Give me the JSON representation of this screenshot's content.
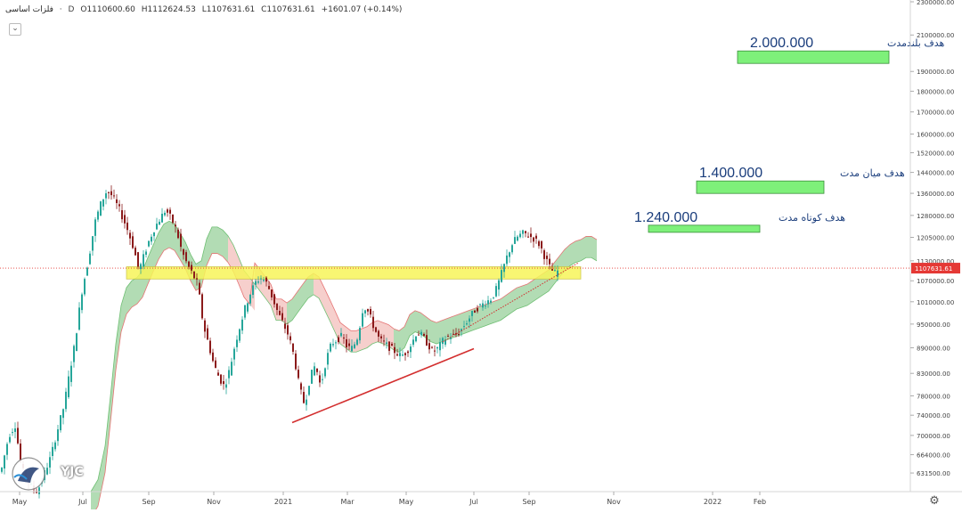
{
  "legend": {
    "symbol": "فلزات اساسی",
    "interval": "D",
    "open": "O1110600.60",
    "high": "H1112624.53",
    "low": "L1107631.61",
    "close": "C1107631.61",
    "change": "+1601.07 (+0.14%)"
  },
  "logo_text": "YJC",
  "colors": {
    "bull": "#26a69a",
    "bear": "#8b1a1a",
    "cloud_bull": "#a5d6a7",
    "cloud_bear": "#f4c7c3",
    "target_box": "#7ef07a",
    "support_zone": "#f7f55a",
    "trendline": "#d32f2f",
    "price_tag": "#e53935",
    "annotation_text": "#1a3d7c"
  },
  "chart_data": {
    "type": "candlestick",
    "y_scale": "log",
    "x_tick_labels": [
      "May",
      "Jul",
      "Sep",
      "Nov",
      "2021",
      "Mar",
      "May",
      "Jul",
      "Sep",
      "Nov",
      "2022",
      "Feb"
    ],
    "y_tick_labels": [
      "2300000.00",
      "2100000.00",
      "1900000.00",
      "1800000.00",
      "1700000.00",
      "1600000.00",
      "1520000.00",
      "1440000.00",
      "1360000.00",
      "1280000.00",
      "1205000.00",
      "1130000.00",
      "1070000.00",
      "1010000.00",
      "950000.00",
      "890000.00",
      "830000.00",
      "780000.00",
      "740000.00",
      "700000.00",
      "664000.00",
      "631500.00"
    ],
    "y_ticks": [
      2300000,
      2100000,
      1900000,
      1800000,
      1700000,
      1600000,
      1520000,
      1440000,
      1360000,
      1280000,
      1205000,
      1130000,
      1070000,
      1010000,
      950000,
      890000,
      830000,
      780000,
      740000,
      700000,
      664000,
      631500
    ],
    "last_price": 1107631.61,
    "last_price_label": "1107631.61",
    "targets": [
      {
        "label": "هدف بلندمدت",
        "value_text": "2.000.000",
        "value": 2000000
      },
      {
        "label": "هدف میان مدت",
        "value_text": "1.400.000",
        "value": 1400000
      },
      {
        "label": "هدف کوتاه مدت",
        "value_text": "1.240.000",
        "value": 1240000
      }
    ],
    "support_zone": {
      "low": 1075000,
      "high": 1112000
    },
    "trendline": {
      "from": 725000,
      "to": 1125000
    },
    "price_path": [
      [
        0,
        640000
      ],
      [
        8,
        700000
      ],
      [
        15,
        720000
      ],
      [
        22,
        640000
      ],
      [
        32,
        610000
      ],
      [
        40,
        600000
      ],
      [
        55,
        660000
      ],
      [
        70,
        760000
      ],
      [
        82,
        900000
      ],
      [
        90,
        1040000
      ],
      [
        97,
        1130000
      ],
      [
        105,
        1260000
      ],
      [
        112,
        1330000
      ],
      [
        118,
        1370000
      ],
      [
        124,
        1350000
      ],
      [
        132,
        1300000
      ],
      [
        140,
        1240000
      ],
      [
        148,
        1170000
      ],
      [
        154,
        1100000
      ],
      [
        160,
        1150000
      ],
      [
        166,
        1200000
      ],
      [
        172,
        1240000
      ],
      [
        178,
        1270000
      ],
      [
        184,
        1300000
      ],
      [
        190,
        1270000
      ],
      [
        196,
        1230000
      ],
      [
        202,
        1160000
      ],
      [
        208,
        1120000
      ],
      [
        214,
        1090000
      ],
      [
        220,
        1060000
      ],
      [
        226,
        950000
      ],
      [
        232,
        900000
      ],
      [
        238,
        850000
      ],
      [
        244,
        820000
      ],
      [
        250,
        800000
      ],
      [
        256,
        840000
      ],
      [
        262,
        900000
      ],
      [
        268,
        950000
      ],
      [
        274,
        1000000
      ],
      [
        280,
        1040000
      ],
      [
        286,
        1070000
      ],
      [
        292,
        1080000
      ],
      [
        298,
        1060000
      ],
      [
        304,
        1020000
      ],
      [
        310,
        980000
      ],
      [
        316,
        950000
      ],
      [
        322,
        920000
      ],
      [
        328,
        870000
      ],
      [
        334,
        800000
      ],
      [
        340,
        760000
      ],
      [
        346,
        820000
      ],
      [
        352,
        850000
      ],
      [
        358,
        800000
      ],
      [
        364,
        860000
      ],
      [
        370,
        900000
      ],
      [
        376,
        910000
      ],
      [
        382,
        920000
      ],
      [
        388,
        890000
      ],
      [
        394,
        890000
      ],
      [
        400,
        920000
      ],
      [
        406,
        1000000
      ],
      [
        412,
        980000
      ],
      [
        418,
        940000
      ],
      [
        424,
        910000
      ],
      [
        430,
        900000
      ],
      [
        436,
        890000
      ],
      [
        442,
        880000
      ],
      [
        448,
        870000
      ],
      [
        454,
        880000
      ],
      [
        460,
        900000
      ],
      [
        466,
        930000
      ],
      [
        472,
        920000
      ],
      [
        478,
        900000
      ],
      [
        484,
        880000
      ],
      [
        490,
        890000
      ],
      [
        496,
        910000
      ],
      [
        502,
        920000
      ],
      [
        508,
        920000
      ],
      [
        514,
        930000
      ],
      [
        520,
        950000
      ],
      [
        526,
        970000
      ],
      [
        532,
        990000
      ],
      [
        538,
        1000000
      ],
      [
        544,
        1010000
      ],
      [
        550,
        1020000
      ],
      [
        556,
        1050000
      ],
      [
        562,
        1100000
      ],
      [
        568,
        1150000
      ],
      [
        574,
        1190000
      ],
      [
        580,
        1210000
      ],
      [
        586,
        1220000
      ],
      [
        592,
        1210000
      ],
      [
        598,
        1200000
      ],
      [
        604,
        1180000
      ],
      [
        610,
        1140000
      ],
      [
        616,
        1105000
      ],
      [
        622,
        1090000
      ],
      [
        626,
        1107631
      ]
    ],
    "cloud_path": [
      [
        100,
        600000
      ],
      [
        108,
        620000
      ],
      [
        116,
        680000
      ],
      [
        122,
        780000
      ],
      [
        128,
        900000
      ],
      [
        134,
        1000000
      ],
      [
        140,
        1050000
      ],
      [
        146,
        1070000
      ],
      [
        152,
        1080000
      ],
      [
        158,
        1100000
      ],
      [
        164,
        1140000
      ],
      [
        170,
        1180000
      ],
      [
        176,
        1220000
      ],
      [
        182,
        1250000
      ],
      [
        188,
        1260000
      ],
      [
        194,
        1250000
      ],
      [
        200,
        1220000
      ],
      [
        206,
        1190000
      ],
      [
        212,
        1150000
      ],
      [
        218,
        1120000
      ],
      [
        224,
        1130000
      ],
      [
        230,
        1200000
      ],
      [
        236,
        1240000
      ],
      [
        242,
        1240000
      ],
      [
        248,
        1230000
      ],
      [
        254,
        1210000
      ],
      [
        260,
        1180000
      ],
      [
        266,
        1140000
      ],
      [
        272,
        1100000
      ],
      [
        278,
        1080000
      ],
      [
        284,
        1060000
      ],
      [
        290,
        1040000
      ],
      [
        296,
        1020000
      ],
      [
        302,
        1000000
      ],
      [
        308,
        960000
      ],
      [
        314,
        960000
      ],
      [
        320,
        950000
      ],
      [
        326,
        960000
      ],
      [
        332,
        980000
      ],
      [
        338,
        1000000
      ],
      [
        344,
        1020000
      ],
      [
        350,
        1030000
      ],
      [
        356,
        1020000
      ],
      [
        362,
        990000
      ],
      [
        368,
        960000
      ],
      [
        374,
        930000
      ],
      [
        380,
        900000
      ],
      [
        386,
        890000
      ],
      [
        392,
        880000
      ],
      [
        398,
        880000
      ],
      [
        404,
        885000
      ],
      [
        410,
        890000
      ],
      [
        416,
        900000
      ],
      [
        422,
        905000
      ],
      [
        428,
        900000
      ],
      [
        434,
        895000
      ],
      [
        440,
        885000
      ],
      [
        446,
        880000
      ],
      [
        452,
        890000
      ],
      [
        458,
        920000
      ],
      [
        464,
        930000
      ],
      [
        470,
        925000
      ],
      [
        476,
        915000
      ],
      [
        482,
        905000
      ],
      [
        488,
        900000
      ],
      [
        494,
        905000
      ],
      [
        500,
        910000
      ],
      [
        506,
        915000
      ],
      [
        512,
        920000
      ],
      [
        518,
        925000
      ],
      [
        524,
        930000
      ],
      [
        530,
        935000
      ],
      [
        536,
        940000
      ],
      [
        542,
        945000
      ],
      [
        548,
        950000
      ],
      [
        554,
        955000
      ],
      [
        560,
        960000
      ],
      [
        566,
        970000
      ],
      [
        572,
        980000
      ],
      [
        578,
        990000
      ],
      [
        584,
        995000
      ],
      [
        590,
        1000000
      ],
      [
        596,
        1010000
      ],
      [
        602,
        1020000
      ],
      [
        608,
        1030000
      ],
      [
        614,
        1040000
      ],
      [
        620,
        1060000
      ],
      [
        626,
        1080000
      ],
      [
        632,
        1100000
      ],
      [
        638,
        1115000
      ],
      [
        644,
        1125000
      ],
      [
        650,
        1130000
      ],
      [
        656,
        1140000
      ],
      [
        662,
        1140000
      ],
      [
        668,
        1130000
      ]
    ]
  }
}
